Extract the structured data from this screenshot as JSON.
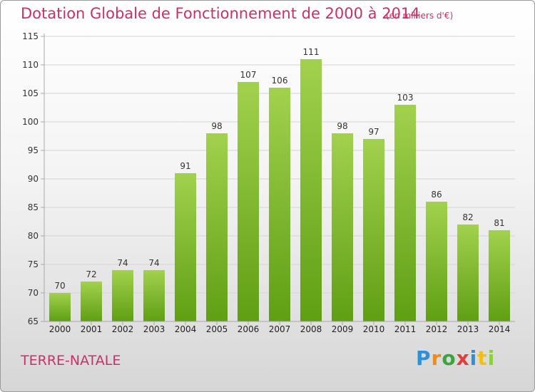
{
  "title": "Dotation Globale de Fonctionnement de 2000 à 2014",
  "unit_note": "(en milliers d'€)",
  "commune": "TERRE-NATALE",
  "logo": "Proxiti",
  "colors": {
    "bar_top": "#a2d14e",
    "bar_bottom": "#5f9f14",
    "title": "#c8306a"
  },
  "chart_data": {
    "type": "bar",
    "categories": [
      "2000",
      "2001",
      "2002",
      "2003",
      "2004",
      "2005",
      "2006",
      "2007",
      "2008",
      "2009",
      "2010",
      "2011",
      "2012",
      "2013",
      "2014"
    ],
    "values": [
      70,
      72,
      74,
      74,
      91,
      98,
      107,
      106,
      111,
      98,
      97,
      103,
      86,
      82,
      81
    ],
    "ylim": [
      65,
      115
    ],
    "yticks": [
      65,
      70,
      75,
      80,
      85,
      90,
      95,
      100,
      105,
      110,
      115
    ],
    "title": "Dotation Globale de Fonctionnement de 2000 à 2014",
    "ylabel": "(en milliers d'€)",
    "grid": true,
    "data_labels": true
  }
}
